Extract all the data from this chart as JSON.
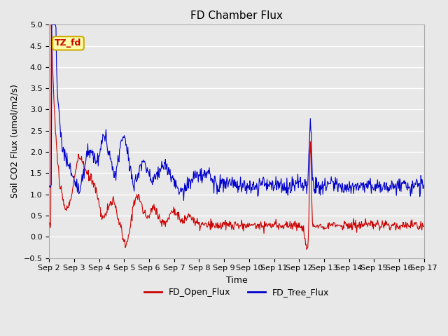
{
  "title": "FD Chamber Flux",
  "xlabel": "Time",
  "ylabel": "Soil CO2 Flux (umol/m2/s)",
  "ylim": [
    -0.5,
    5.0
  ],
  "yticks": [
    -0.5,
    0.0,
    0.5,
    1.0,
    1.5,
    2.0,
    2.5,
    3.0,
    3.5,
    4.0,
    4.5,
    5.0
  ],
  "xtick_labels": [
    "Sep 2",
    "Sep 3",
    "Sep 4",
    "Sep 5",
    "Sep 6",
    "Sep 7",
    "Sep 8",
    "Sep 9",
    "Sep 10",
    "Sep 11",
    "Sep 12",
    "Sep 13",
    "Sep 14",
    "Sep 15",
    "Sep 16",
    "Sep 17"
  ],
  "open_flux_color": "#cc0000",
  "tree_flux_color": "#0000cc",
  "legend_labels": [
    "FD_Open_Flux",
    "FD_Tree_Flux"
  ],
  "annotation_text": "TZ_fd",
  "bg_color": "#e8e8e8",
  "plot_bg_color": "#e8e8e8",
  "grid_color": "#ffffff",
  "title_fontsize": 11,
  "label_fontsize": 9,
  "tick_fontsize": 8,
  "n_days": 15,
  "n_points": 720,
  "seed": 10
}
